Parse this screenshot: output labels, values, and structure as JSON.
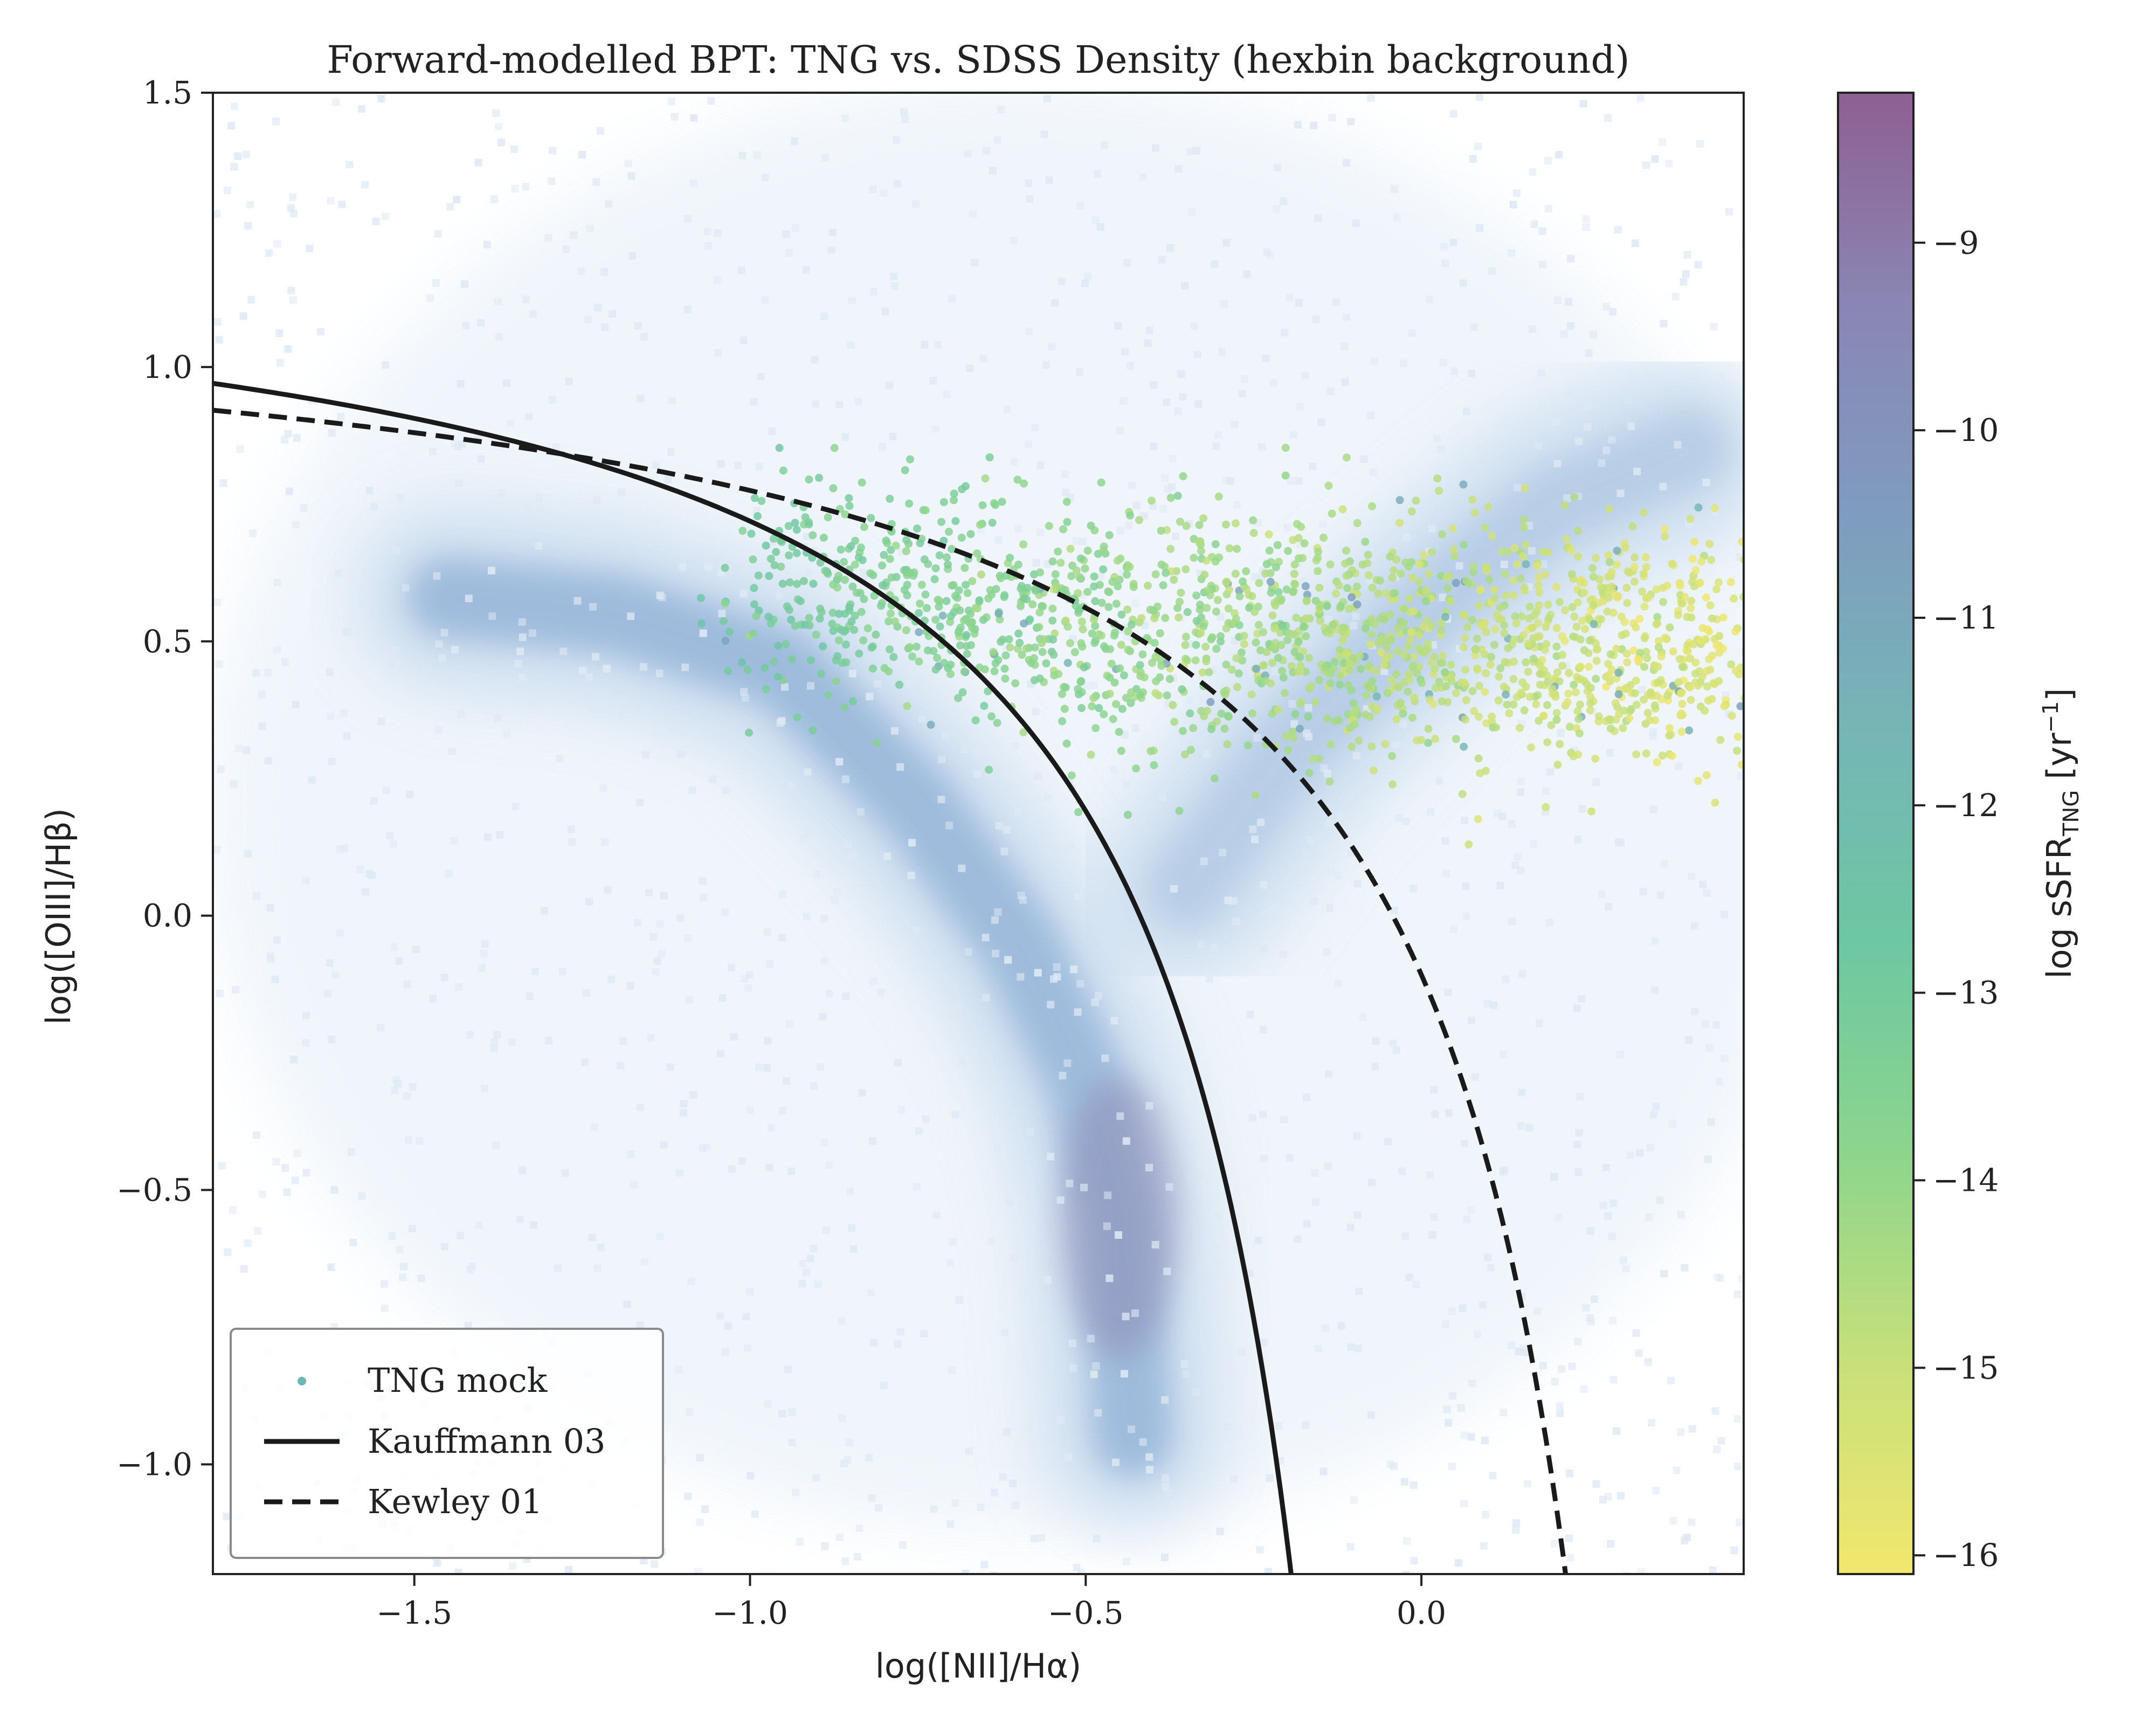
{
  "chart_data": {
    "type": "scatter",
    "title": "Forward-modelled BPT: TNG vs. SDSS Density (hexbin background)",
    "xlabel": "log([NII]/Hα)",
    "ylabel": "log([OIII]/Hβ)",
    "xlim": [
      -1.8,
      0.48
    ],
    "ylim": [
      -1.2,
      1.5
    ],
    "xticks": [
      {
        "value": -1.5,
        "label": "−1.5"
      },
      {
        "value": -1.0,
        "label": "−1.0"
      },
      {
        "value": -0.5,
        "label": "−0.5"
      },
      {
        "value": 0.0,
        "label": "0.0"
      }
    ],
    "yticks": [
      {
        "value": -1.0,
        "label": "−1.0"
      },
      {
        "value": -0.5,
        "label": "−0.5"
      },
      {
        "value": 0.0,
        "label": "0.0"
      },
      {
        "value": 0.5,
        "label": "0.5"
      },
      {
        "value": 1.0,
        "label": "1.0"
      },
      {
        "value": 1.5,
        "label": "1.5"
      }
    ],
    "grid": false,
    "legend_position": "lower-left",
    "background": {
      "type": "hexbin",
      "description_source": "SDSS density",
      "color_low": "#eef4fa",
      "color_mid": "#8fb0d6",
      "color_high": "#8a82ad",
      "ridges": [
        {
          "x": [
            -1.45,
            -1.2,
            -0.95,
            -0.75,
            -0.6,
            -0.5,
            -0.45,
            -0.43
          ],
          "y": [
            0.58,
            0.55,
            0.45,
            0.2,
            -0.05,
            -0.3,
            -0.55,
            -0.95
          ]
        },
        {
          "x": [
            -0.35,
            -0.2,
            0.0,
            0.2,
            0.4
          ],
          "y": [
            0.05,
            0.3,
            0.55,
            0.75,
            0.85
          ]
        }
      ]
    },
    "series": [
      {
        "name": "TNG mock",
        "kind": "scatter",
        "description": "TNG mock galaxies coloured by log sSFR",
        "cloud": {
          "x_range": [
            -1.0,
            0.48
          ],
          "y_center": 0.52,
          "y_spread": 0.24,
          "count": 1800
        }
      },
      {
        "name": "Kauffmann 03",
        "kind": "line",
        "style": "solid",
        "equation": "0.61/(x-0.05)+1.3",
        "x_range": [
          -1.8,
          -0.19
        ]
      },
      {
        "name": "Kewley 01",
        "kind": "line",
        "style": "dashed",
        "equation": "0.61/(x-0.47)+1.19",
        "x_range": [
          -1.8,
          0.22
        ]
      }
    ],
    "colorbar": {
      "label_main": "log sSFR",
      "label_sub": "TNG",
      "label_unit_open": " [yr",
      "label_sup": "−1",
      "label_unit_close": "]",
      "range": [
        -16.1,
        -8.2
      ],
      "ticks": [
        {
          "value": -9,
          "label": "−9"
        },
        {
          "value": -10,
          "label": "−10"
        },
        {
          "value": -11,
          "label": "−11"
        },
        {
          "value": -12,
          "label": "−12"
        },
        {
          "value": -13,
          "label": "−13"
        },
        {
          "value": -14,
          "label": "−14"
        },
        {
          "value": -15,
          "label": "−15"
        },
        {
          "value": -16,
          "label": "−16"
        }
      ],
      "colors_top_to_bottom": [
        "#8e5f93",
        "#8a86b3",
        "#7f9cbf",
        "#76b5b6",
        "#6dc7a2",
        "#8cd58d",
        "#c7e07a",
        "#f2e76e"
      ]
    },
    "legend": [
      {
        "label": "TNG mock",
        "marker": "dot"
      },
      {
        "label": "Kauffmann 03",
        "marker": "solid-line"
      },
      {
        "label": "Kewley 01",
        "marker": "dashed-line"
      }
    ]
  }
}
